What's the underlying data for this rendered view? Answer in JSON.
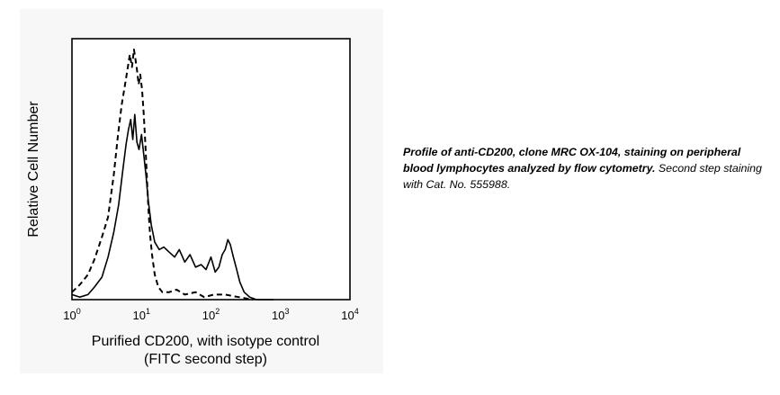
{
  "chart_data": {
    "type": "line",
    "xlabel_line1": "Purified CD200, with isotype control",
    "xlabel_line2": "(FITC second step)",
    "ylabel": "Relative Cell Number",
    "x_scale": "log",
    "xlim": [
      1,
      10000
    ],
    "ylim": [
      0,
      1.0
    ],
    "x_ticks": [
      {
        "value": 1,
        "base": "10",
        "exp": "0"
      },
      {
        "value": 10,
        "base": "10",
        "exp": "1"
      },
      {
        "value": 100,
        "base": "10",
        "exp": "2"
      },
      {
        "value": 1000,
        "base": "10",
        "exp": "3"
      },
      {
        "value": 10000,
        "base": "10",
        "exp": "4"
      }
    ],
    "grid": false,
    "series": [
      {
        "style": "solid",
        "color": "#000000",
        "x": [
          1.0,
          1.3,
          1.7,
          2.1,
          2.7,
          3.3,
          4.0,
          4.7,
          5.4,
          6.0,
          6.5,
          7.0,
          7.5,
          8.0,
          8.6,
          9.2,
          10,
          10.8,
          11.6,
          12.5,
          13.8,
          15.5,
          18,
          21,
          25,
          30,
          35,
          42,
          50,
          60,
          72,
          85,
          100,
          115,
          130,
          145,
          160,
          175,
          190,
          210,
          230,
          260,
          300,
          360,
          450,
          600,
          800
        ],
        "y": [
          0.02,
          0.01,
          0.02,
          0.05,
          0.09,
          0.17,
          0.27,
          0.38,
          0.52,
          0.62,
          0.68,
          0.72,
          0.64,
          0.74,
          0.63,
          0.6,
          0.66,
          0.58,
          0.5,
          0.4,
          0.3,
          0.23,
          0.2,
          0.21,
          0.19,
          0.17,
          0.2,
          0.15,
          0.18,
          0.13,
          0.14,
          0.12,
          0.17,
          0.11,
          0.13,
          0.18,
          0.2,
          0.24,
          0.22,
          0.17,
          0.13,
          0.07,
          0.03,
          0.01,
          0.0,
          0.0,
          0.0
        ]
      },
      {
        "style": "dashed",
        "color": "#000000",
        "x": [
          1.0,
          1.3,
          1.7,
          2.1,
          2.7,
          3.3,
          4.0,
          4.6,
          5.2,
          5.8,
          6.3,
          6.8,
          7.3,
          7.8,
          8.2,
          8.6,
          9.1,
          9.6,
          10.2,
          10.8,
          11.4,
          12.0,
          12.6,
          13.3,
          14.2,
          15.5,
          17.5,
          20,
          25,
          32,
          42,
          60,
          80,
          110,
          160,
          250,
          400
        ],
        "y": [
          0.03,
          0.06,
          0.1,
          0.16,
          0.25,
          0.33,
          0.5,
          0.66,
          0.78,
          0.86,
          0.92,
          0.98,
          0.93,
          1.0,
          0.96,
          0.92,
          0.86,
          0.9,
          0.84,
          0.74,
          0.62,
          0.48,
          0.36,
          0.26,
          0.18,
          0.1,
          0.05,
          0.03,
          0.03,
          0.04,
          0.02,
          0.03,
          0.01,
          0.02,
          0.02,
          0.01,
          0.0
        ]
      }
    ]
  },
  "caption": {
    "bold_text": "Profile of anti-CD200, clone MRC OX-104, staining on peripheral blood lymphocytes analyzed by flow cytometry.",
    "normal_text": " Second step staining with Cat. No. 555988."
  }
}
